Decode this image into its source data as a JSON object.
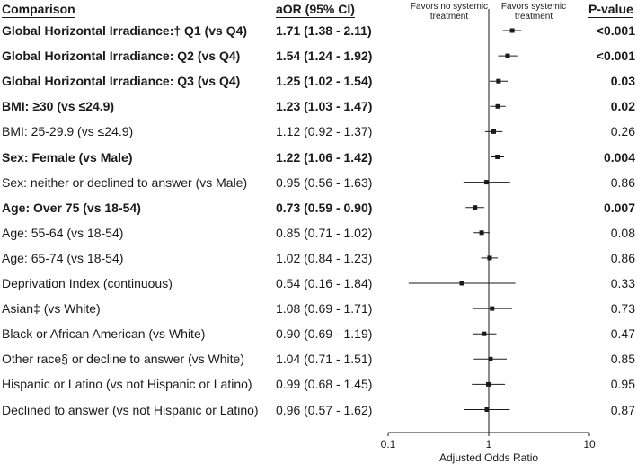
{
  "headers": {
    "comparison": "Comparison",
    "aor": "aOR (95% CI)",
    "pvalue": "P-value",
    "favors_left": "Favors no systemic treatment",
    "favors_right": "Favors systemic treatment"
  },
  "chart_data": {
    "type": "forest",
    "x_scale": "log",
    "xlim": [
      0.1,
      10
    ],
    "xticks": [
      "0.1",
      "1",
      "10"
    ],
    "xlabel": "Adjusted Odds Ratio",
    "reference_line": 1,
    "rows": [
      {
        "label": "Global Horizontal Irradiance:† Q1 (vs Q4)",
        "ci_text": "1.71 (1.38 - 2.11)",
        "or": 1.71,
        "lo": 1.38,
        "hi": 2.11,
        "p": "<0.001",
        "bold": true
      },
      {
        "label": "Global Horizontal Irradiance: Q2 (vs Q4)",
        "ci_text": "1.54 (1.24 - 1.92)",
        "or": 1.54,
        "lo": 1.24,
        "hi": 1.92,
        "p": "<0.001",
        "bold": true
      },
      {
        "label": "Global Horizontal Irradiance: Q3 (vs Q4)",
        "ci_text": "1.25 (1.02 - 1.54)",
        "or": 1.25,
        "lo": 1.02,
        "hi": 1.54,
        "p": "0.03",
        "bold": true
      },
      {
        "label": "BMI: ≥30 (vs ≤24.9)",
        "ci_text": "1.23 (1.03 - 1.47)",
        "or": 1.23,
        "lo": 1.03,
        "hi": 1.47,
        "p": "0.02",
        "bold": true
      },
      {
        "label": "BMI: 25-29.9 (vs ≤24.9)",
        "ci_text": "1.12 (0.92 - 1.37)",
        "or": 1.12,
        "lo": 0.92,
        "hi": 1.37,
        "p": "0.26",
        "bold": false
      },
      {
        "label": "Sex: Female (vs Male)",
        "ci_text": "1.22 (1.06 - 1.42)",
        "or": 1.22,
        "lo": 1.06,
        "hi": 1.42,
        "p": "0.004",
        "bold": true
      },
      {
        "label": "Sex: neither or declined to answer (vs Male)",
        "ci_text": "0.95 (0.56 - 1.63)",
        "or": 0.95,
        "lo": 0.56,
        "hi": 1.63,
        "p": "0.86",
        "bold": false
      },
      {
        "label": "Age: Over 75 (vs 18-54)",
        "ci_text": "0.73 (0.59 - 0.90)",
        "or": 0.73,
        "lo": 0.59,
        "hi": 0.9,
        "p": "0.007",
        "bold": true
      },
      {
        "label": "Age: 55-64 (vs 18-54)",
        "ci_text": "0.85 (0.71 - 1.02)",
        "or": 0.85,
        "lo": 0.71,
        "hi": 1.02,
        "p": "0.08",
        "bold": false
      },
      {
        "label": "Age: 65-74 (vs 18-54)",
        "ci_text": "1.02 (0.84 - 1.23)",
        "or": 1.02,
        "lo": 0.84,
        "hi": 1.23,
        "p": "0.86",
        "bold": false
      },
      {
        "label": "Deprivation Index (continuous)",
        "ci_text": "0.54 (0.16 - 1.84)",
        "or": 0.54,
        "lo": 0.16,
        "hi": 1.84,
        "p": "0.33",
        "bold": false
      },
      {
        "label": "Asian‡ (vs White)",
        "ci_text": "1.08 (0.69 - 1.71)",
        "or": 1.08,
        "lo": 0.69,
        "hi": 1.71,
        "p": "0.73",
        "bold": false
      },
      {
        "label": "Black or African American (vs White)",
        "ci_text": "0.90 (0.69 - 1.19)",
        "or": 0.9,
        "lo": 0.69,
        "hi": 1.19,
        "p": "0.47",
        "bold": false
      },
      {
        "label": "Other race§ or decline to answer (vs White)",
        "ci_text": "1.04 (0.71 - 1.51)",
        "or": 1.04,
        "lo": 0.71,
        "hi": 1.51,
        "p": "0.85",
        "bold": false
      },
      {
        "label": "Hispanic or Latino (vs not Hispanic or Latino)",
        "ci_text": "0.99 (0.68 - 1.45)",
        "or": 0.99,
        "lo": 0.68,
        "hi": 1.45,
        "p": "0.95",
        "bold": false
      },
      {
        "label": "Declined to answer (vs not Hispanic or Latino)",
        "ci_text": "0.96 (0.57 - 1.62)",
        "or": 0.96,
        "lo": 0.57,
        "hi": 1.62,
        "p": "0.87",
        "bold": false
      }
    ]
  }
}
